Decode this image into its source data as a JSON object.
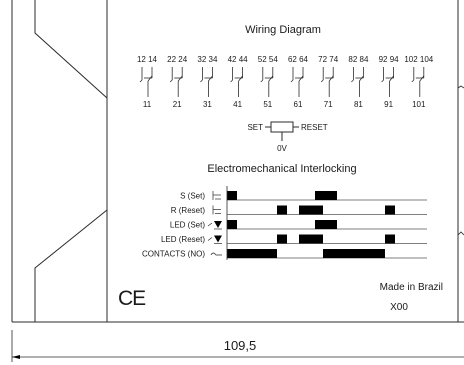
{
  "wiring": {
    "title": "Wiring Diagram",
    "top_pairs": [
      "12 14",
      "22 24",
      "32 34",
      "42 44",
      "52 54",
      "62 64",
      "72 74",
      "82 84",
      "92 94",
      "102 104"
    ],
    "bottom": [
      "11",
      "21",
      "31",
      "41",
      "51",
      "61",
      "71",
      "81",
      "91",
      "101"
    ],
    "coil": {
      "set": "SET",
      "reset": "RESET",
      "ground": "0V"
    }
  },
  "interlock": {
    "title": "Electromechanical Interlocking",
    "rows": [
      {
        "label": "S (Set)",
        "pulses": [
          [
            0.0,
            0.05
          ],
          [
            0.44,
            0.55
          ]
        ]
      },
      {
        "label": "R (Reset)",
        "pulses": [
          [
            0.25,
            0.3
          ],
          [
            0.36,
            0.48
          ],
          [
            0.79,
            0.84
          ]
        ]
      },
      {
        "label": "LED (Set)",
        "pulses": [
          [
            0.0,
            0.05
          ],
          [
            0.44,
            0.55
          ]
        ]
      },
      {
        "label": "LED (Reset)",
        "pulses": [
          [
            0.25,
            0.3
          ],
          [
            0.36,
            0.48
          ],
          [
            0.79,
            0.84
          ]
        ]
      },
      {
        "label": "CONTACTS (NO)",
        "pulses": [
          [
            0.0,
            0.25
          ],
          [
            0.48,
            0.79
          ]
        ]
      }
    ]
  },
  "marks": {
    "ce": "CE",
    "origin": "Made in Brazil",
    "code": "X00"
  },
  "dimension": {
    "width": "109,5"
  }
}
